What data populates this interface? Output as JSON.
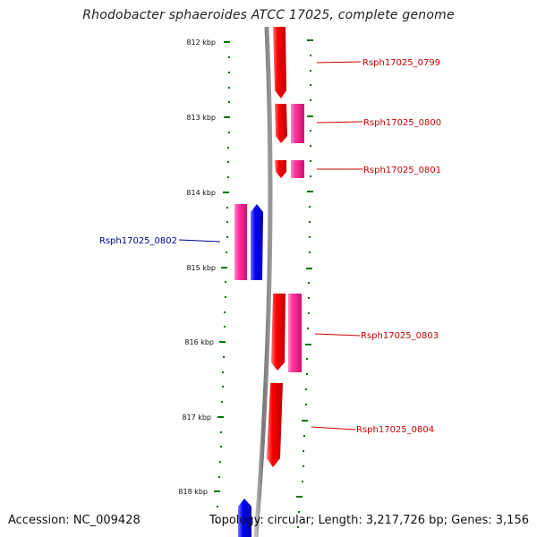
{
  "title": "Rhodobacter sphaeroides ATCC 17025, complete genome",
  "accession_label": "Accession: NC_009428",
  "topology_label": "Topology: circular; Length: 3,217,726 bp; Genes: 3,156",
  "kbp_labels": [
    "812 kbp",
    "813 kbp",
    "814 kbp",
    "815 kbp",
    "816 kbp",
    "817 kbp",
    "818 kbp"
  ],
  "genes": [
    {
      "name": "Rsph17025_0799",
      "color": "#cc0000"
    },
    {
      "name": "Rsph17025_0800",
      "color": "#cc0000"
    },
    {
      "name": "Rsph17025_0801",
      "color": "#cc0000"
    },
    {
      "name": "Rsph17025_0802",
      "color": "#000099"
    },
    {
      "name": "Rsph17025_0803",
      "color": "#cc0000"
    },
    {
      "name": "Rsph17025_0804",
      "color": "#cc0000"
    }
  ],
  "colors": {
    "forward_gene": "#ff0000",
    "reverse_gene": "#0000ff",
    "other_feature": "#ff3399",
    "tick": "#007700",
    "backbone": "#888888"
  }
}
